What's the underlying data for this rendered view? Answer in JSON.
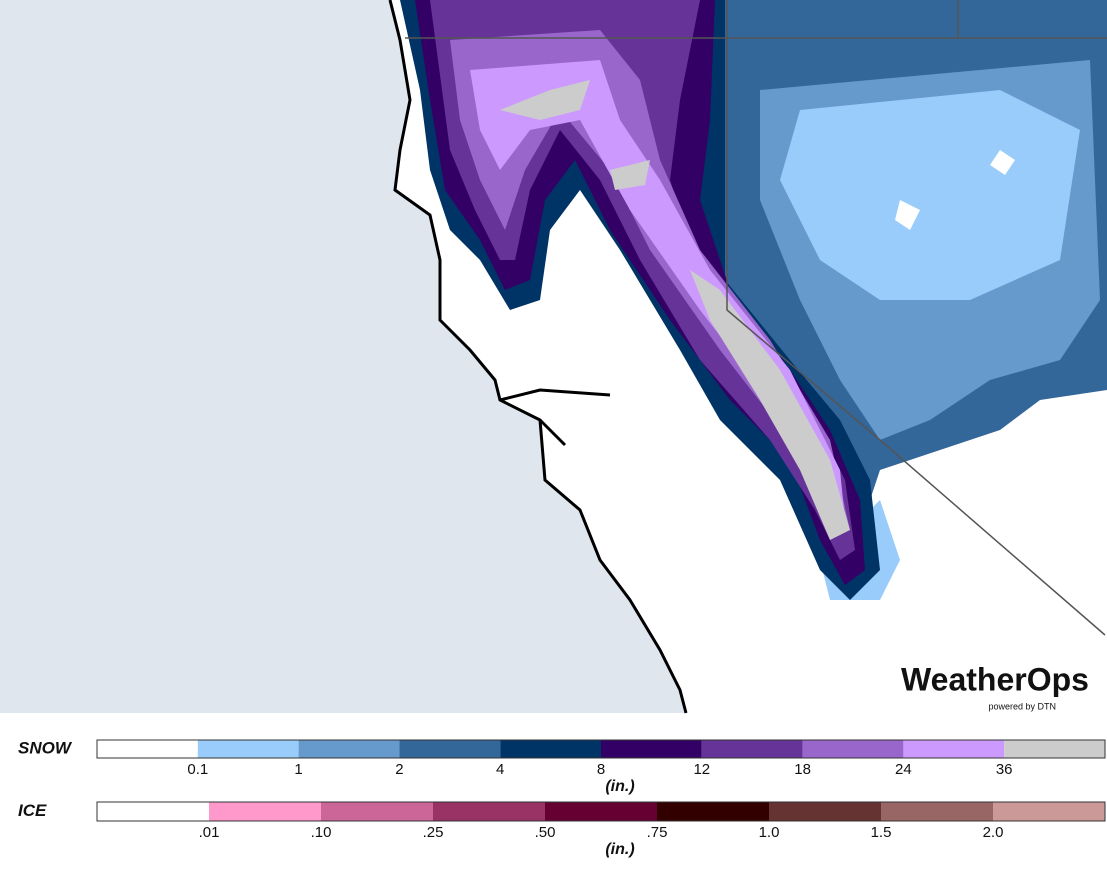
{
  "logo": {
    "title": "WeatherOps",
    "subtitle": "powered by DTN"
  },
  "legends": [
    {
      "title": "SNOW",
      "unit": "(in.)",
      "colors": [
        "#ffffff",
        "#99ccfa",
        "#6699cc",
        "#336699",
        "#003366",
        "#330066",
        "#663399",
        "#9966cc",
        "#cc99ff",
        "#cccccc"
      ],
      "labels": [
        "0.1",
        "1",
        "2",
        "4",
        "8",
        "12",
        "18",
        "24",
        "36"
      ]
    },
    {
      "title": "ICE",
      "unit": "(in.)",
      "colors": [
        "#ffffff",
        "#ff99cc",
        "#cc6699",
        "#993366",
        "#660033",
        "#330000",
        "#663333",
        "#996666",
        "#cc9999"
      ],
      "labels": [
        ".01",
        ".10",
        ".25",
        ".50",
        ".75",
        "1.0",
        "1.5",
        "2.0"
      ]
    }
  ]
}
